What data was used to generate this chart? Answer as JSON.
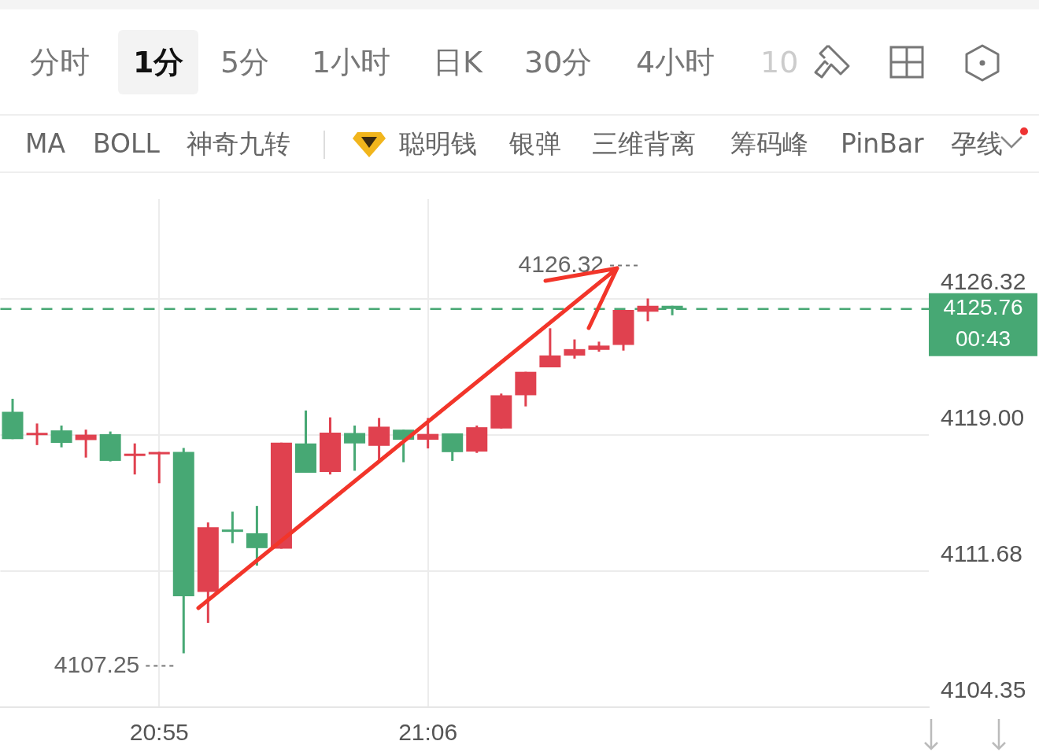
{
  "chart_data": [
    {
      "type": "other",
      "annotations": [
        "分时",
        "1分",
        "5分",
        "1小时",
        "日K",
        "30分",
        "4小时",
        "10"
      ]
    },
    {
      "type": "other",
      "annotations": [
        "MA",
        "BOLL",
        "神奇九转",
        "聪明钱",
        "银弹",
        "三维背离",
        "筹码峰",
        "PinBar",
        "孕线"
      ]
    },
    {
      "type": "candlestick",
      "categories": [
        null,
        null,
        null,
        null,
        null,
        null,
        "20:55",
        null,
        null,
        null,
        null,
        null,
        null,
        null,
        null,
        null,
        null,
        "21:06",
        null,
        null,
        null,
        null,
        null,
        null,
        null,
        null,
        null,
        null,
        null,
        null,
        null,
        null,
        null,
        null,
        null,
        null,
        null,
        null
      ],
      "ohlc": [
        [
          4120.23,
          4120.93,
          4118.76,
          4118.76
        ],
        [
          4119.05,
          4119.6,
          4118.44,
          4119.1
        ],
        [
          4119.23,
          4119.49,
          4118.32,
          4118.56
        ],
        [
          4118.71,
          4119.27,
          4117.77,
          4119.0
        ],
        [
          4119.03,
          4119.17,
          4117.56,
          4117.59
        ],
        [
          4117.95,
          4118.53,
          4116.86,
          4117.98
        ],
        [
          4118.05,
          4118.08,
          4116.39,
          4118.07
        ],
        [
          4118.07,
          4118.29,
          4107.25,
          4110.31
        ],
        [
          4110.55,
          4114.28,
          4108.88,
          4114.02
        ],
        [
          4113.9,
          4114.86,
          4113.17,
          4113.88
        ],
        [
          4113.7,
          4115.17,
          4111.96,
          4112.9
        ],
        [
          4112.87,
          4118.57,
          4112.87,
          4118.57
        ],
        [
          4118.53,
          4120.3,
          4116.95,
          4116.95
        ],
        [
          4116.99,
          4119.93,
          4116.86,
          4119.11
        ],
        [
          4119.09,
          4119.49,
          4117.06,
          4118.53
        ],
        [
          4118.4,
          4119.9,
          4117.46,
          4119.43
        ],
        [
          4119.27,
          4119.27,
          4117.52,
          4118.73
        ],
        [
          4118.73,
          4119.9,
          4118.26,
          4119.04
        ],
        [
          4119.07,
          4119.07,
          4117.59,
          4118.06
        ],
        [
          4118.09,
          4119.49,
          4118.02,
          4119.4
        ],
        [
          4119.33,
          4121.21,
          4119.33,
          4121.12
        ],
        [
          4121.12,
          4122.38,
          4120.52,
          4122.38
        ],
        [
          4122.62,
          4124.72,
          4122.62,
          4123.26
        ],
        [
          4123.25,
          4124.12,
          4123.09,
          4123.6
        ],
        [
          4123.56,
          4124.0,
          4123.46,
          4123.79
        ],
        [
          4123.83,
          4125.71,
          4123.52,
          4125.71
        ],
        [
          4125.61,
          4126.32,
          4125.1,
          4125.93
        ],
        [
          4125.93,
          4125.93,
          4125.42,
          4125.76
        ],
        null,
        null,
        null,
        null,
        null,
        null,
        null,
        null,
        null,
        null
      ],
      "colors": [
        "#47a874",
        "#e0414f",
        "#47a874",
        "#e0414f",
        "#47a874",
        "#e0414f",
        "#e0414f",
        "#47a874",
        "#e0414f",
        "#47a874",
        "#47a874",
        "#e0414f",
        "#47a874",
        "#e0414f",
        "#47a874",
        "#e0414f",
        "#47a874",
        "#e0414f",
        "#47a874",
        "#e0414f",
        "#e0414f",
        "#e0414f",
        "#e0414f",
        "#e0414f",
        "#e0414f",
        "#e0414f",
        "#e0414f",
        "#47a874",
        null,
        null,
        null,
        null,
        null,
        null,
        null,
        null,
        null,
        null
      ],
      "ylim": [
        4104.35,
        4131.67
      ],
      "yticks": [
        4104.35,
        4111.68,
        {
          "value": 4119,
          "label": "4119.00"
        },
        4126.32
      ],
      "grid": true,
      "ref_lines": [
        {
          "axis": "y",
          "value": 4125.76,
          "label": "4125.76",
          "color": "#47a874",
          "line_style": "dashed"
        }
      ],
      "annotations": [
        "4126.32",
        "4107.25",
        "00:43"
      ]
    }
  ]
}
